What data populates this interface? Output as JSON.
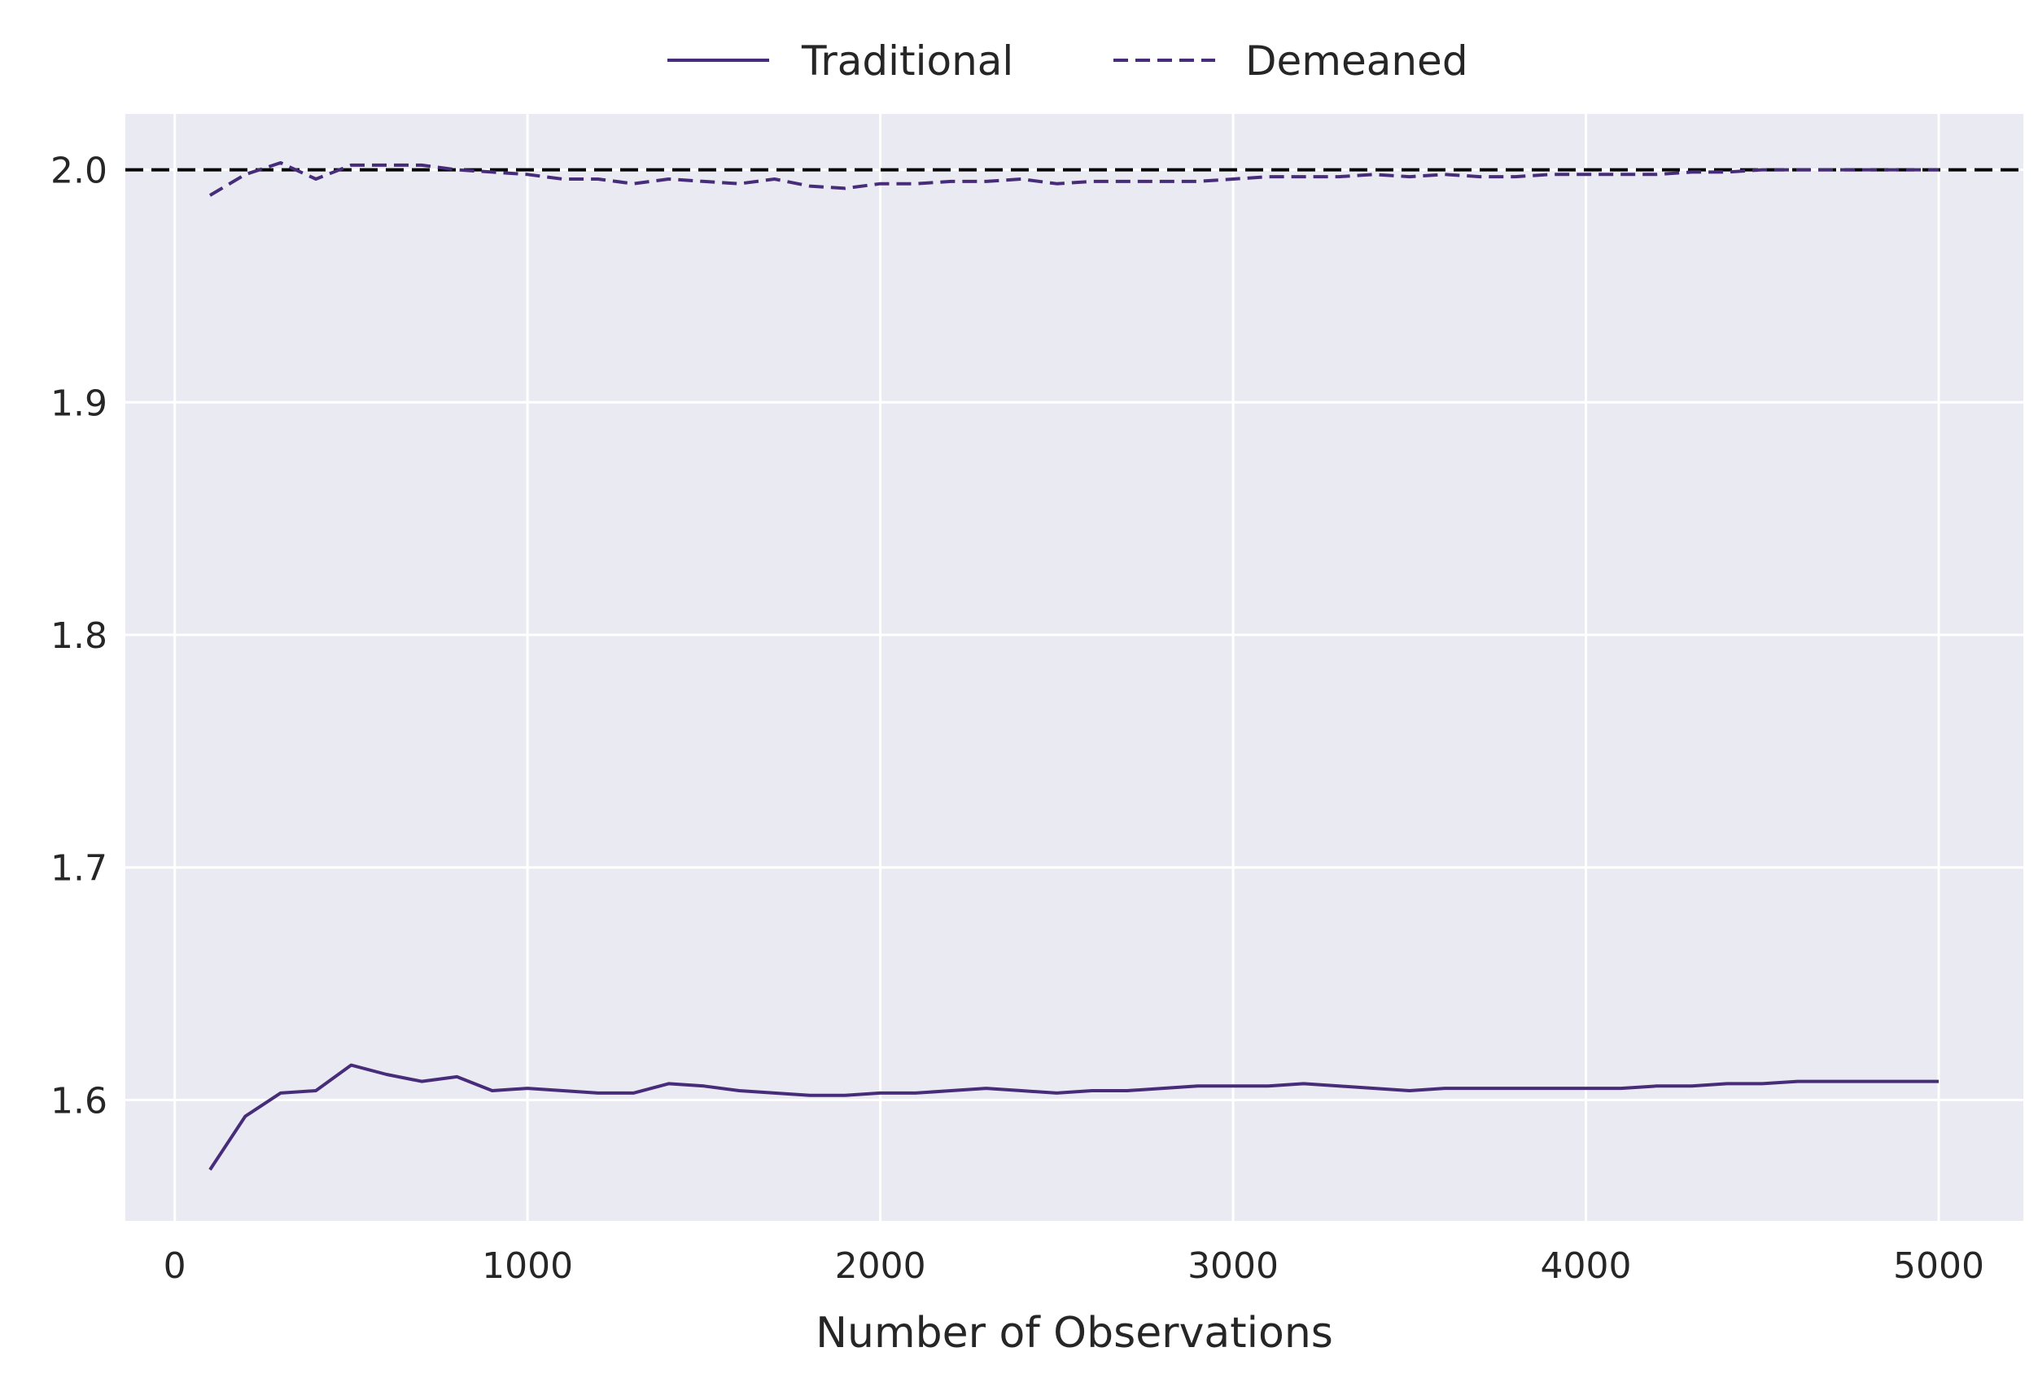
{
  "chart_data": {
    "type": "line",
    "xlabel": "Number of Observations",
    "ylabel": "",
    "xlim": [
      -140,
      5240
    ],
    "ylim": [
      1.548,
      2.024
    ],
    "xticks": [
      0,
      1000,
      2000,
      3000,
      4000,
      5000
    ],
    "xtick_labels": [
      "0",
      "1000",
      "2000",
      "3000",
      "4000",
      "5000"
    ],
    "yticks": [
      1.6,
      1.7,
      1.8,
      1.9,
      2.0
    ],
    "ytick_labels": [
      "1.6",
      "1.7",
      "1.8",
      "1.9",
      "2.0"
    ],
    "grid": true,
    "legend": {
      "placement": "top-center",
      "orientation": "horizontal"
    },
    "reference_line": {
      "y": 2.0,
      "style": "dashed",
      "color": "#000000"
    },
    "background_color": "#eaeaf2",
    "grid_color": "#ffffff",
    "x": [
      100,
      200,
      300,
      400,
      500,
      600,
      700,
      800,
      900,
      1000,
      1100,
      1200,
      1300,
      1400,
      1500,
      1600,
      1700,
      1800,
      1900,
      2000,
      2100,
      2200,
      2300,
      2400,
      2500,
      2600,
      2700,
      2800,
      2900,
      3000,
      3100,
      3200,
      3300,
      3400,
      3500,
      3600,
      3700,
      3800,
      3900,
      4000,
      4100,
      4200,
      4300,
      4400,
      4500,
      4600,
      4700,
      4800,
      4900,
      5000
    ],
    "series": [
      {
        "name": "Traditional",
        "style": "solid",
        "color": "#472c7a",
        "values": [
          1.57,
          1.593,
          1.603,
          1.604,
          1.615,
          1.611,
          1.608,
          1.61,
          1.604,
          1.605,
          1.604,
          1.603,
          1.603,
          1.607,
          1.606,
          1.604,
          1.603,
          1.602,
          1.602,
          1.603,
          1.603,
          1.604,
          1.605,
          1.604,
          1.603,
          1.604,
          1.604,
          1.605,
          1.606,
          1.606,
          1.606,
          1.607,
          1.606,
          1.605,
          1.604,
          1.605,
          1.605,
          1.605,
          1.605,
          1.605,
          1.605,
          1.606,
          1.606,
          1.607,
          1.607,
          1.608,
          1.608,
          1.608,
          1.608,
          1.608
        ]
      },
      {
        "name": "Demeaned",
        "style": "dashed",
        "color": "#472c7a",
        "values": [
          1.989,
          1.998,
          2.003,
          1.996,
          2.002,
          2.002,
          2.002,
          2.0,
          1.999,
          1.998,
          1.996,
          1.996,
          1.994,
          1.996,
          1.995,
          1.994,
          1.996,
          1.993,
          1.992,
          1.994,
          1.994,
          1.995,
          1.995,
          1.996,
          1.994,
          1.995,
          1.995,
          1.995,
          1.995,
          1.996,
          1.997,
          1.997,
          1.997,
          1.998,
          1.997,
          1.998,
          1.997,
          1.997,
          1.998,
          1.998,
          1.998,
          1.998,
          1.999,
          1.999,
          2.0,
          2.0,
          2.0,
          2.0,
          2.0,
          2.0
        ]
      }
    ]
  }
}
